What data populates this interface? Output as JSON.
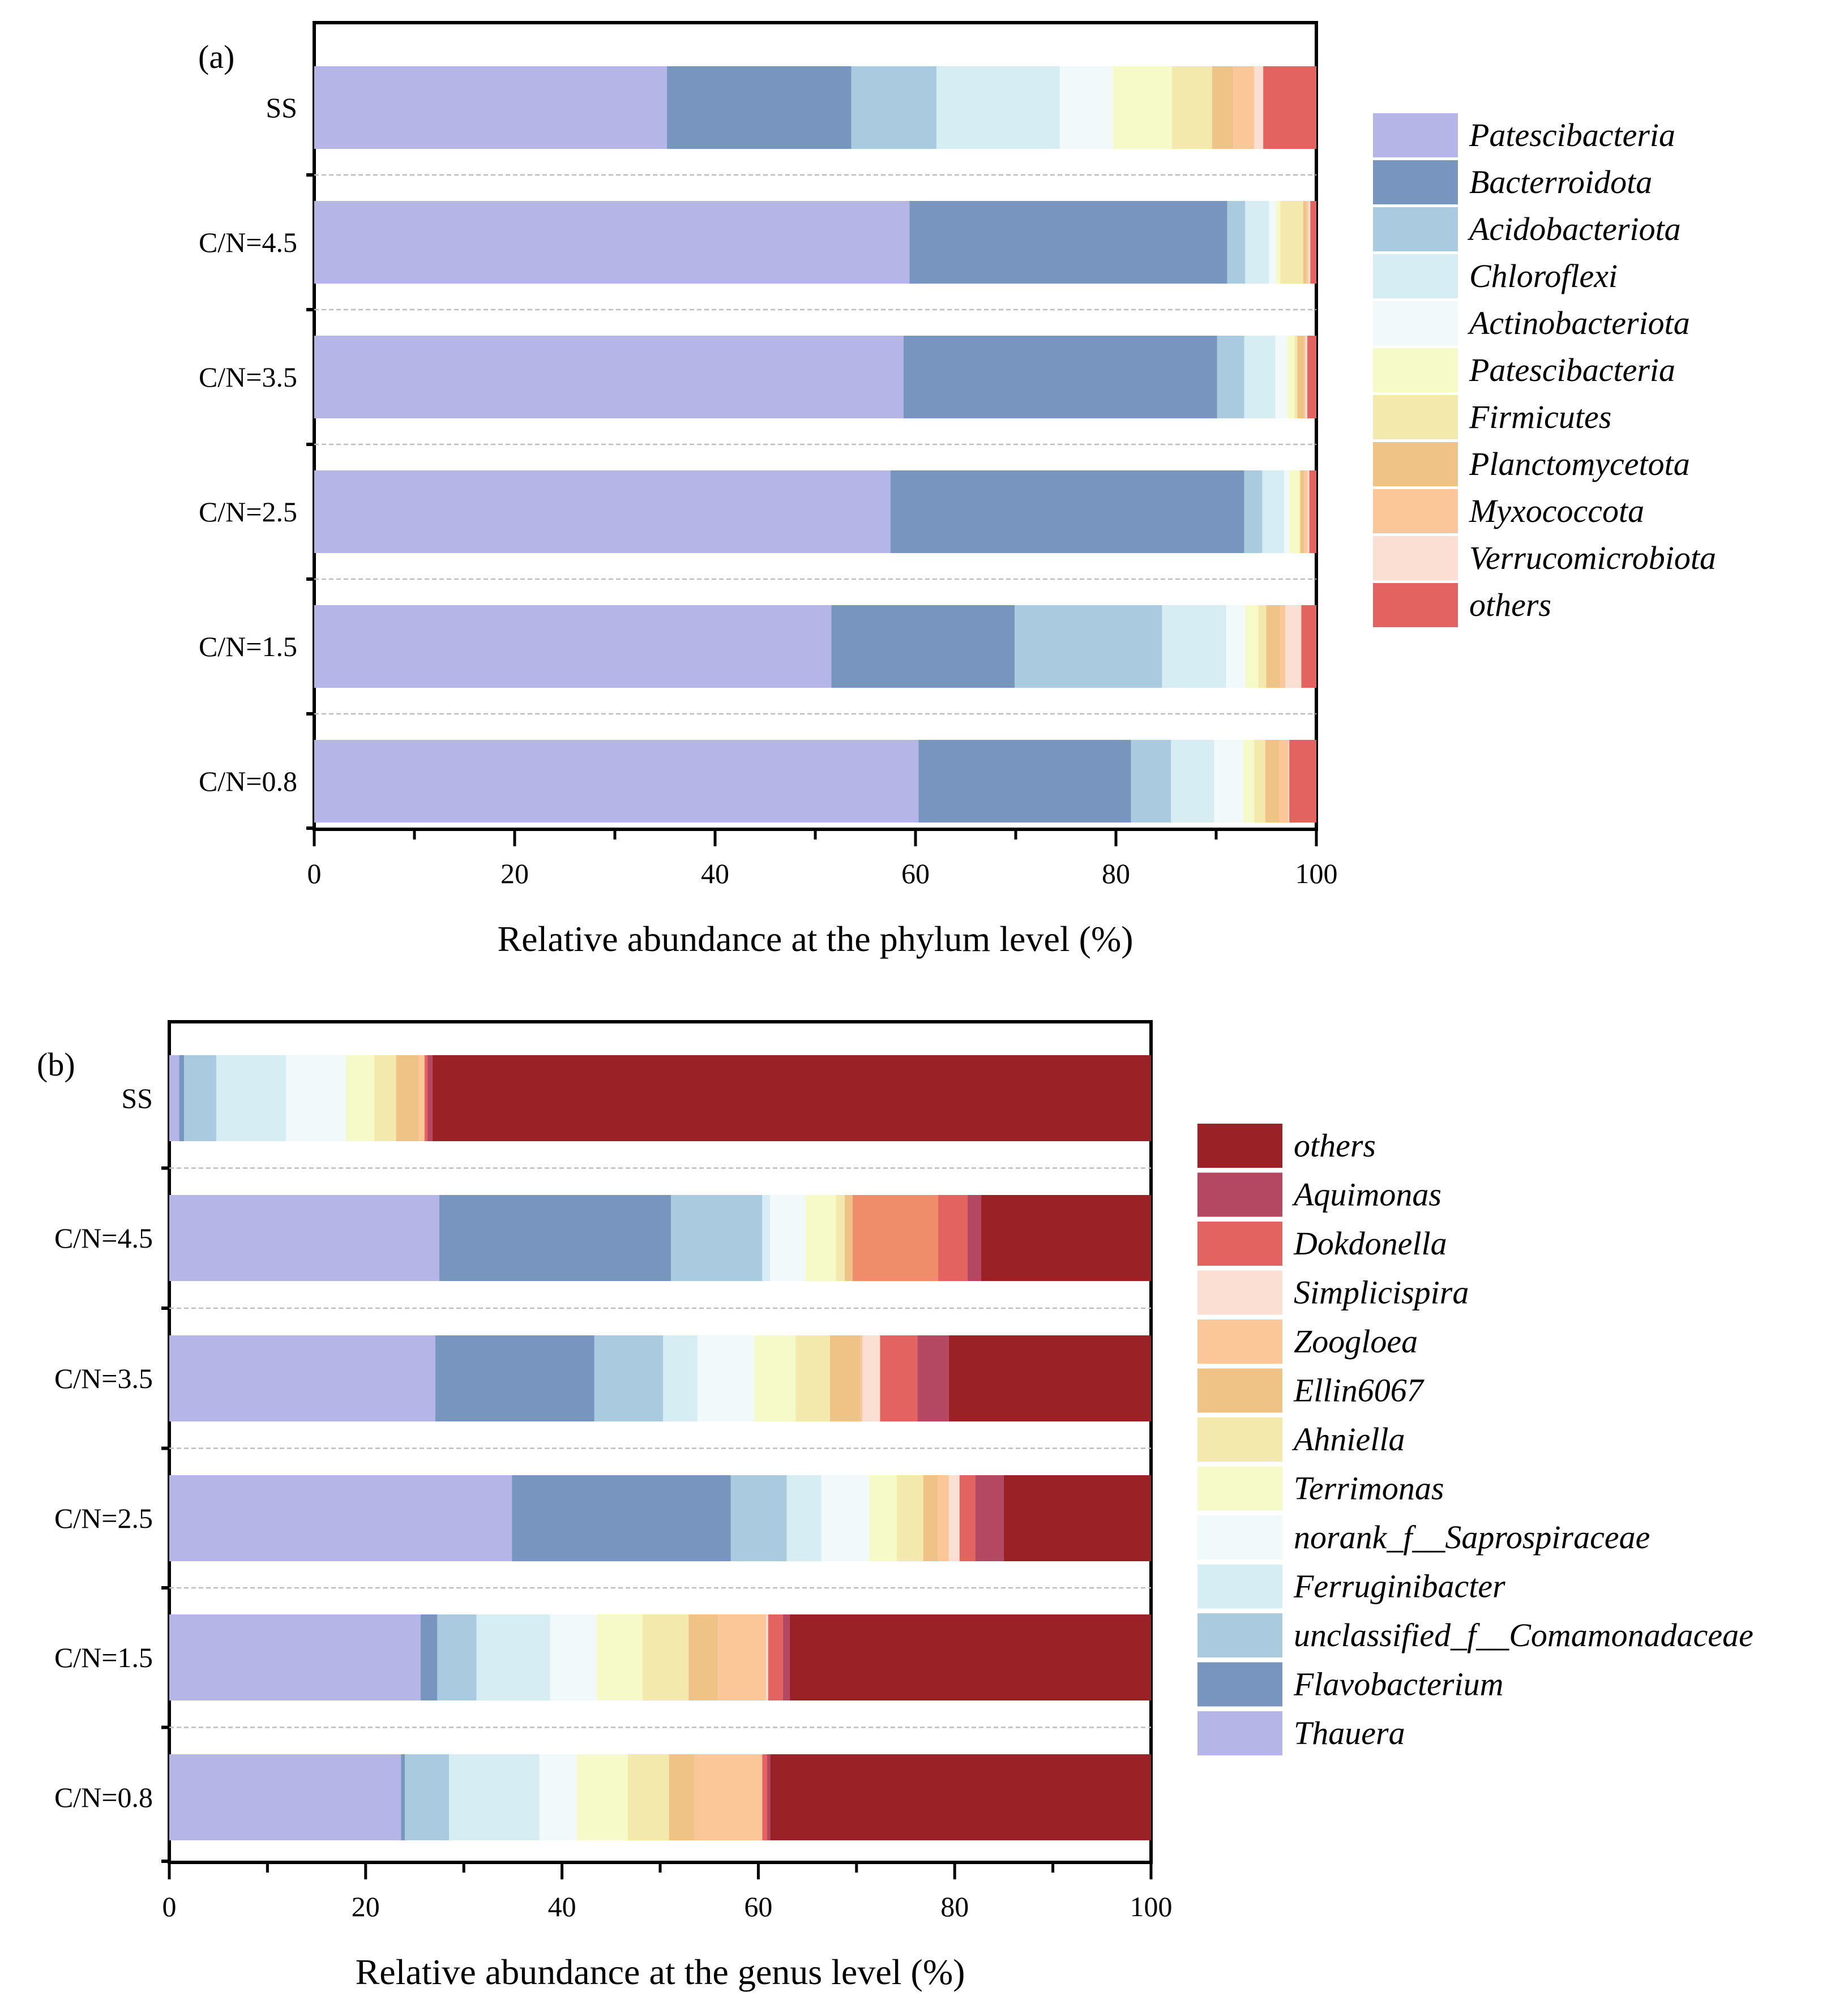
{
  "chart_data": [
    {
      "type": "bar",
      "orientation": "horizontal",
      "stacked": true,
      "panel_label": "(a)",
      "title": "",
      "xlabel": "Relative abundance at the phylum level (%)",
      "ylabel": "",
      "xlim": [
        0,
        100
      ],
      "xticks": [
        0,
        20,
        40,
        60,
        80,
        100
      ],
      "grid": "dashed separators between bars",
      "legend_position": "right",
      "categories": [
        "SS",
        "C/N=4.5",
        "C/N=3.5",
        "C/N=2.5",
        "C/N=1.5",
        "C/N=0.8"
      ],
      "series": [
        {
          "name": "Patescibacteria",
          "color": "#b5b5e8",
          "values": [
            35.2,
            59.4,
            58.8,
            57.5,
            51.6,
            60.3
          ]
        },
        {
          "name": "Bacterroidota",
          "color": "#7895c0",
          "values": [
            18.4,
            31.7,
            31.3,
            35.3,
            18.3,
            21.2
          ]
        },
        {
          "name": "Acidobacteriota",
          "color": "#a9cadf",
          "values": [
            8.5,
            1.8,
            2.7,
            1.8,
            14.7,
            4.0
          ]
        },
        {
          "name": "Chloroflexi",
          "color": "#d5edf3",
          "values": [
            12.3,
            2.4,
            3.1,
            2.2,
            6.4,
            4.3
          ]
        },
        {
          "name": "Actinobacteriota",
          "color": "#f1f9fb",
          "values": [
            5.3,
            0.7,
            1.2,
            0.5,
            1.9,
            2.9
          ]
        },
        {
          "name": "Patescibacteria",
          "color": "#f6f9c8",
          "values": [
            5.9,
            0.4,
            0.7,
            1.0,
            1.3,
            1.1
          ]
        },
        {
          "name": "Firmicutes",
          "color": "#f4e9ad",
          "values": [
            4.0,
            2.3,
            0.3,
            0.1,
            0.8,
            1.1
          ]
        },
        {
          "name": "Planctomycetota",
          "color": "#efc286",
          "values": [
            2.1,
            0.3,
            0.7,
            0.4,
            1.4,
            1.4
          ]
        },
        {
          "name": "Myxococcota",
          "color": "#fbc799",
          "values": [
            2.1,
            0.2,
            0.1,
            0.3,
            0.5,
            0.9
          ]
        },
        {
          "name": "Verrucomicrobiota",
          "color": "#fcdfd3",
          "values": [
            0.9,
            0.2,
            0.2,
            0.2,
            1.6,
            0.1
          ]
        },
        {
          "name": "others",
          "color": "#e2635f",
          "values": [
            5.3,
            0.6,
            0.9,
            0.7,
            1.5,
            2.7
          ]
        }
      ],
      "legend_order": [
        "Patescibacteria",
        "Bacterroidota",
        "Acidobacteriota",
        "Chloroflexi",
        "Actinobacteriota",
        "Patescibacteria",
        "Firmicutes",
        "Planctomycetota",
        "Myxococcota",
        "Verrucomicrobiota",
        "others"
      ]
    },
    {
      "type": "bar",
      "orientation": "horizontal",
      "stacked": true,
      "panel_label": "(b)",
      "title": "",
      "xlabel": "Relative abundance at the genus level (%)",
      "ylabel": "",
      "xlim": [
        0,
        100
      ],
      "xticks": [
        0,
        20,
        40,
        60,
        80,
        100
      ],
      "grid": "dashed separators between bars",
      "legend_position": "right",
      "categories": [
        "SS",
        "C/N=4.5",
        "C/N=3.5",
        "C/N=2.5",
        "C/N=1.5",
        "C/N=0.8"
      ],
      "series": [
        {
          "name": "Thauera",
          "color": "#b5b5e8",
          "values": [
            1.0,
            27.5,
            27.1,
            34.9,
            25.6,
            23.6
          ]
        },
        {
          "name": "Flavobacterium",
          "color": "#7895c0",
          "values": [
            0.5,
            23.6,
            16.2,
            22.3,
            1.7,
            0.4
          ]
        },
        {
          "name": "unclassified_f__Comamonadaceae",
          "color": "#a9cadf",
          "values": [
            3.3,
            9.3,
            7.0,
            5.7,
            4.0,
            4.5
          ]
        },
        {
          "name": "Ferruginibacter",
          "color": "#d5edf3",
          "values": [
            7.1,
            0.8,
            3.5,
            3.5,
            7.5,
            9.2
          ]
        },
        {
          "name": "norank_f__Saprospiraceae",
          "color": "#f1f9fb",
          "values": [
            6.1,
            3.6,
            5.8,
            4.9,
            4.7,
            3.8
          ]
        },
        {
          "name": "Terrimonas",
          "color": "#f6f9c8",
          "values": [
            2.9,
            3.1,
            4.2,
            2.8,
            4.7,
            5.2
          ]
        },
        {
          "name": "Ahniella",
          "color": "#f4e9ad",
          "values": [
            2.2,
            0.9,
            3.5,
            2.7,
            4.7,
            4.2
          ]
        },
        {
          "name": "Ellin6067",
          "color": "#efc286",
          "values": [
            2.3,
            0.8,
            3.1,
            1.5,
            3.0,
            2.6
          ]
        },
        {
          "name": "Zoogloea",
          "color": "#fbc799",
          "values": [
            0.6,
            8.7,
            0.2,
            1.1,
            4.9,
            6.9
          ]
        },
        {
          "name": "Simplicispira",
          "color": "#fcdfd3",
          "values": [
            0.0,
            0.0,
            1.8,
            1.1,
            0.2,
            0.0
          ]
        },
        {
          "name": "Dokdonella",
          "color": "#e2635f",
          "values": [
            0.3,
            3.0,
            3.8,
            1.6,
            1.5,
            0.5
          ]
        },
        {
          "name": "Aquimonas",
          "color": "#b44863",
          "values": [
            0.5,
            1.4,
            3.2,
            2.9,
            0.7,
            0.3
          ]
        },
        {
          "name": "others",
          "color": "#9a2226",
          "values": [
            73.2,
            17.3,
            20.6,
            15.0,
            36.8,
            38.8
          ]
        }
      ],
      "segment_color_overrides": [
        {
          "category": "C/N=4.5",
          "series": "Zoogloea",
          "color": "#ef8c69"
        }
      ],
      "legend_order": [
        "others",
        "Aquimonas",
        "Dokdonella",
        "Simplicispira",
        "Zoogloea",
        "Ellin6067",
        "Ahniella",
        "Terrimonas",
        "norank_f__Saprospiraceae",
        "Ferruginibacter",
        "unclassified_f__Comamonadaceae",
        "Flavobacterium",
        "Thauera"
      ]
    }
  ]
}
